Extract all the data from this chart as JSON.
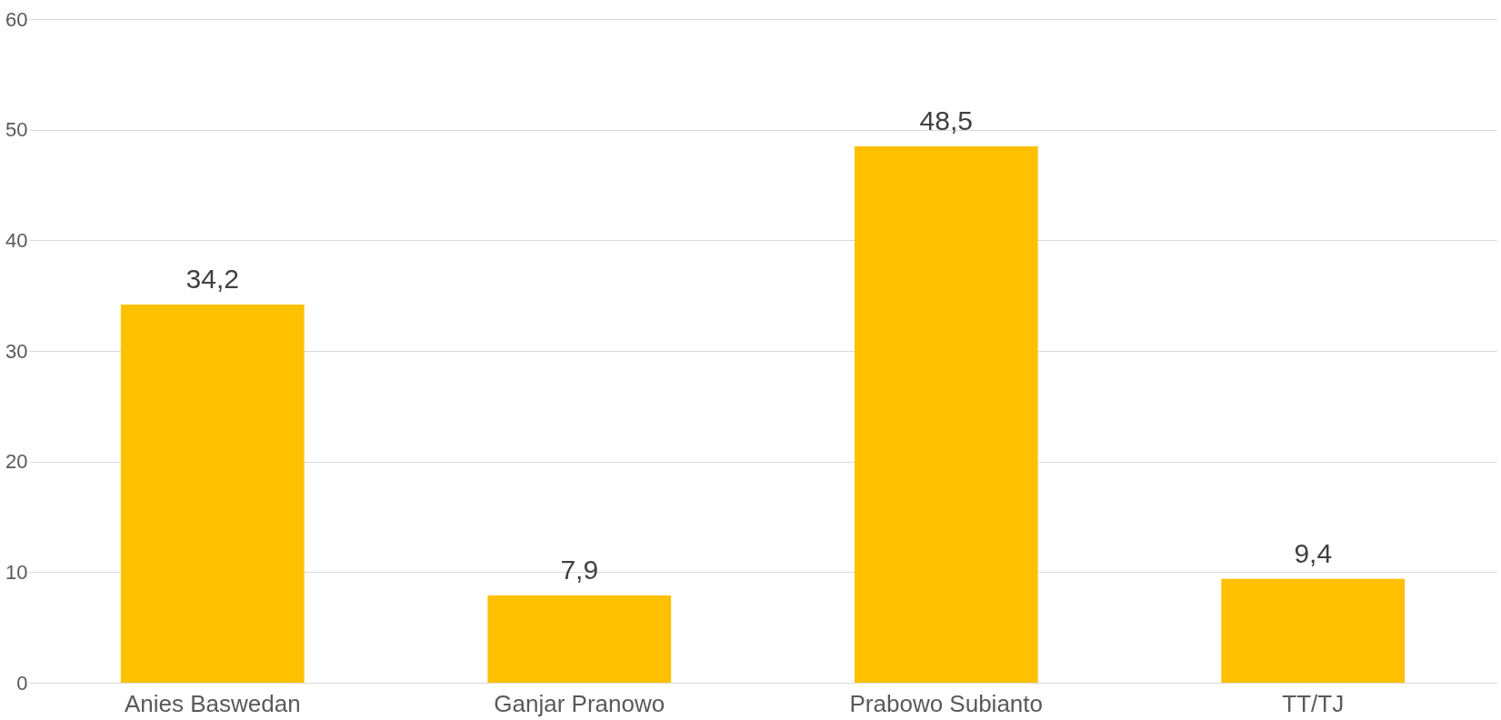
{
  "chart_data": {
    "type": "bar",
    "categories": [
      "Anies Baswedan",
      "Ganjar Pranowo",
      "Prabowo Subianto",
      "TT/TJ"
    ],
    "values": [
      34.2,
      7.9,
      48.5,
      9.4
    ],
    "value_labels": [
      "34,2",
      "7,9",
      "48,5",
      "9,4"
    ],
    "color": "#ffc000",
    "ylim": [
      0,
      60
    ],
    "yticks": [
      0,
      10,
      20,
      30,
      40,
      50,
      60
    ],
    "grid": "y"
  }
}
